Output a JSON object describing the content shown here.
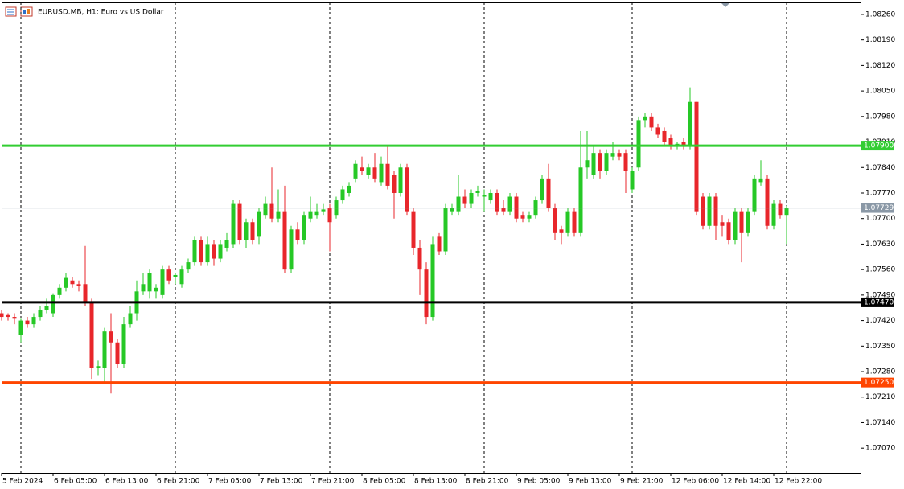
{
  "chart_data": {
    "type": "candlestick",
    "title": "EURUSD.MB, H1:  Euro vs US Dollar",
    "up_color": "#26c826",
    "down_color": "#e8262b",
    "ylim": [
      1.07002,
      1.08293
    ],
    "yticks": [
      {
        "value": 1.0826,
        "label": "1.08260"
      },
      {
        "value": 1.0819,
        "label": "1.08190"
      },
      {
        "value": 1.0812,
        "label": "1.08120"
      },
      {
        "value": 1.0805,
        "label": "1.08050"
      },
      {
        "value": 1.0798,
        "label": "1.07980"
      },
      {
        "value": 1.0791,
        "label": "1.07910"
      },
      {
        "value": 1.0784,
        "label": "1.07840"
      },
      {
        "value": 1.0777,
        "label": "1.07770"
      },
      {
        "value": 1.077,
        "label": "1.07700"
      },
      {
        "value": 1.0763,
        "label": "1.07630"
      },
      {
        "value": 1.0756,
        "label": "1.07560"
      },
      {
        "value": 1.0749,
        "label": "1.07490"
      },
      {
        "value": 1.0742,
        "label": "1.07420"
      },
      {
        "value": 1.0735,
        "label": "1.07350"
      },
      {
        "value": 1.0728,
        "label": "1.07280"
      },
      {
        "value": 1.0721,
        "label": "1.07210"
      },
      {
        "value": 1.0714,
        "label": "1.07140"
      },
      {
        "value": 1.0707,
        "label": "1.07070"
      }
    ],
    "hlines": [
      {
        "value": 1.079,
        "label": "1.07900",
        "color": "#32cd32"
      },
      {
        "value": 1.0747,
        "label": "1.07470",
        "color": "#000000"
      },
      {
        "value": 1.0725,
        "label": "1.07250",
        "color": "#ff4500"
      },
      {
        "value": 1.07729,
        "label": "1.07729",
        "color": "#8a98a6"
      }
    ],
    "categories": [
      "5 Feb 2024",
      null,
      null,
      null,
      null,
      null,
      null,
      null,
      "6 Feb 05:00",
      null,
      null,
      null,
      null,
      null,
      null,
      null,
      "6 Feb 13:00",
      null,
      null,
      null,
      null,
      null,
      null,
      null,
      "6 Feb 21:00",
      null,
      null,
      null,
      null,
      null,
      null,
      null,
      "7 Feb 05:00",
      null,
      null,
      null,
      null,
      null,
      null,
      null,
      "7 Feb 13:00",
      null,
      null,
      null,
      null,
      null,
      null,
      null,
      "7 Feb 21:00",
      null,
      null,
      null,
      null,
      null,
      null,
      null,
      "8 Feb 05:00",
      null,
      null,
      null,
      null,
      null,
      null,
      null,
      "8 Feb 13:00",
      null,
      null,
      null,
      null,
      null,
      null,
      null,
      "8 Feb 21:00",
      null,
      null,
      null,
      null,
      null,
      null,
      null,
      "9 Feb 05:00",
      null,
      null,
      null,
      null,
      null,
      null,
      null,
      "9 Feb 13:00",
      null,
      null,
      null,
      null,
      null,
      null,
      null,
      "9 Feb 21:00",
      null,
      null,
      null,
      null,
      null,
      null,
      null,
      "12 Feb 06:00",
      null,
      null,
      null,
      null,
      null,
      null,
      null,
      "12 Feb 14:00",
      null,
      null,
      null,
      null,
      null,
      null,
      null,
      "12 Feb 22:00",
      null,
      null
    ],
    "ohlc": [
      [
        1.0744,
        1.0745,
        1.0742,
        1.0743
      ],
      [
        1.07435,
        1.0744,
        1.0742,
        1.0743
      ],
      [
        1.0743,
        1.0744,
        1.0741,
        1.07425
      ],
      [
        1.0738,
        1.07425,
        1.0736,
        1.0742
      ],
      [
        1.0742,
        1.0743,
        1.074,
        1.0741
      ],
      [
        1.0741,
        1.0744,
        1.074,
        1.0743
      ],
      [
        1.0743,
        1.0746,
        1.0742,
        1.0745
      ],
      [
        1.0745,
        1.0748,
        1.0744,
        1.0746
      ],
      [
        1.0744,
        1.07495,
        1.0743,
        1.0749
      ],
      [
        1.0749,
        1.0752,
        1.0748,
        1.0751
      ],
      [
        1.0751,
        1.0755,
        1.075,
        1.07537
      ],
      [
        1.0753,
        1.0754,
        1.0751,
        1.0752
      ],
      [
        1.0752,
        1.0753,
        1.075,
        1.07515
      ],
      [
        1.0752,
        1.07625,
        1.0746,
        1.0747
      ],
      [
        1.0747,
        1.0748,
        1.0726,
        1.0729
      ],
      [
        1.0729,
        1.0731,
        1.0727,
        1.07295
      ],
      [
        1.0729,
        1.074,
        1.0725,
        1.0739
      ],
      [
        1.0739,
        1.0744,
        1.0722,
        1.0736
      ],
      [
        1.0736,
        1.0737,
        1.0729,
        1.073
      ],
      [
        1.073,
        1.0743,
        1.0729,
        1.0741
      ],
      [
        1.0741,
        1.0746,
        1.074,
        1.0744
      ],
      [
        1.0744,
        1.0753,
        1.0742,
        1.075
      ],
      [
        1.075,
        1.0755,
        1.0749,
        1.0752
      ],
      [
        1.075,
        1.0756,
        1.0748,
        1.0755
      ],
      [
        1.075,
        1.0752,
        1.0748,
        1.0751
      ],
      [
        1.0749,
        1.0757,
        1.0748,
        1.0756
      ],
      [
        1.0756,
        1.0757,
        1.0752,
        1.0753
      ],
      [
        1.0754,
        1.0755,
        1.0752,
        1.07545
      ],
      [
        1.0752,
        1.0757,
        1.0751,
        1.0756
      ],
      [
        1.0756,
        1.0759,
        1.0755,
        1.0758
      ],
      [
        1.0758,
        1.0765,
        1.0757,
        1.0764
      ],
      [
        1.0764,
        1.0765,
        1.0757,
        1.0758
      ],
      [
        1.0758,
        1.0765,
        1.0757,
        1.0763
      ],
      [
        1.0763,
        1.0764,
        1.0757,
        1.0759
      ],
      [
        1.0759,
        1.0764,
        1.0758,
        1.0763
      ],
      [
        1.0762,
        1.0766,
        1.0761,
        1.0764
      ],
      [
        1.0763,
        1.0775,
        1.0762,
        1.0774
      ],
      [
        1.0774,
        1.0775,
        1.0763,
        1.0764
      ],
      [
        1.0764,
        1.077,
        1.0762,
        1.0769
      ],
      [
        1.0769,
        1.077,
        1.0763,
        1.0764
      ],
      [
        1.0765,
        1.0773,
        1.0763,
        1.0772
      ],
      [
        1.0771,
        1.0776,
        1.077,
        1.0774
      ],
      [
        1.0774,
        1.0784,
        1.0769,
        1.077
      ],
      [
        1.077,
        1.0778,
        1.0769,
        1.0772
      ],
      [
        1.0772,
        1.0779,
        1.0755,
        1.0756
      ],
      [
        1.0756,
        1.0768,
        1.0755,
        1.0767
      ],
      [
        1.0767,
        1.0769,
        1.0763,
        1.0764
      ],
      [
        1.0764,
        1.0772,
        1.0763,
        1.0771
      ],
      [
        1.077,
        1.0776,
        1.0769,
        1.0772
      ],
      [
        1.0771,
        1.0774,
        1.077,
        1.0772
      ],
      [
        1.0772,
        1.0774,
        1.0771,
        1.07725
      ],
      [
        1.0773,
        1.0774,
        1.0761,
        1.0769
      ],
      [
        1.0771,
        1.0776,
        1.077,
        1.0775
      ],
      [
        1.0775,
        1.0779,
        1.0774,
        1.0778
      ],
      [
        1.0777,
        1.078,
        1.0776,
        1.0779
      ],
      [
        1.0781,
        1.0786,
        1.078,
        1.0785
      ],
      [
        1.0784,
        1.0787,
        1.0782,
        1.0783
      ],
      [
        1.0782,
        1.0785,
        1.0781,
        1.0784
      ],
      [
        1.0784,
        1.0788,
        1.078,
        1.0781
      ],
      [
        1.078,
        1.0787,
        1.0779,
        1.0785
      ],
      [
        1.0785,
        1.079,
        1.0778,
        1.0779
      ],
      [
        1.0782,
        1.0783,
        1.077,
        1.0777
      ],
      [
        1.0777,
        1.0785,
        1.0776,
        1.0784
      ],
      [
        1.0784,
        1.0785,
        1.0771,
        1.0772
      ],
      [
        1.0772,
        1.0773,
        1.076,
        1.0762
      ],
      [
        1.0762,
        1.0764,
        1.0749,
        1.0756
      ],
      [
        1.0756,
        1.0758,
        1.0741,
        1.0743
      ],
      [
        1.0743,
        1.0765,
        1.0742,
        1.0763
      ],
      [
        1.0765,
        1.0766,
        1.076,
        1.0761
      ],
      [
        1.0761,
        1.0774,
        1.076,
        1.0773
      ],
      [
        1.0772,
        1.0774,
        1.0771,
        1.0773
      ],
      [
        1.0772,
        1.0782,
        1.0771,
        1.0776
      ],
      [
        1.0776,
        1.0778,
        1.0773,
        1.0774
      ],
      [
        1.0774,
        1.0778,
        1.0773,
        1.0777
      ],
      [
        1.0777,
        1.0779,
        1.0776,
        1.07775
      ],
      [
        1.0776,
        1.0778,
        1.0772,
        1.07765
      ],
      [
        1.0775,
        1.0778,
        1.0774,
        1.0777
      ],
      [
        1.0777,
        1.0778,
        1.0771,
        1.0772
      ],
      [
        1.0773,
        1.0775,
        1.0771,
        1.0772
      ],
      [
        1.0772,
        1.0777,
        1.0771,
        1.0776
      ],
      [
        1.0776,
        1.0777,
        1.0769,
        1.077
      ],
      [
        1.0771,
        1.0772,
        1.0769,
        1.077
      ],
      [
        1.077,
        1.0772,
        1.0769,
        1.0771
      ],
      [
        1.0771,
        1.0776,
        1.077,
        1.0775
      ],
      [
        1.0775,
        1.0782,
        1.0774,
        1.0781
      ],
      [
        1.0781,
        1.0785,
        1.0772,
        1.0773
      ],
      [
        1.0773,
        1.0774,
        1.0764,
        1.0766
      ],
      [
        1.0767,
        1.0768,
        1.0763,
        1.0766
      ],
      [
        1.0766,
        1.0773,
        1.0765,
        1.0772
      ],
      [
        1.0772,
        1.0773,
        1.0765,
        1.0766
      ],
      [
        1.0766,
        1.0794,
        1.0765,
        1.0784
      ],
      [
        1.0784,
        1.0794,
        1.0781,
        1.0786
      ],
      [
        1.0782,
        1.079,
        1.0781,
        1.0788
      ],
      [
        1.0788,
        1.0789,
        1.0781,
        1.0783
      ],
      [
        1.0783,
        1.0789,
        1.0782,
        1.0788
      ],
      [
        1.0787,
        1.0791,
        1.0786,
        1.0788
      ],
      [
        1.0788,
        1.0789,
        1.0786,
        1.0787
      ],
      [
        1.0788,
        1.0789,
        1.0777,
        1.0783
      ],
      [
        1.0778,
        1.0784,
        1.0777,
        1.0783
      ],
      [
        1.0784,
        1.0798,
        1.0783,
        1.0797
      ],
      [
        1.0797,
        1.0799,
        1.0795,
        1.0798
      ],
      [
        1.0798,
        1.0799,
        1.0794,
        1.0795
      ],
      [
        1.0795,
        1.0796,
        1.0792,
        1.0793
      ],
      [
        1.0794,
        1.0795,
        1.079,
        1.0791
      ],
      [
        1.0792,
        1.0793,
        1.0789,
        1.079
      ],
      [
        1.079,
        1.0791,
        1.0789,
        1.07905
      ],
      [
        1.0791,
        1.0792,
        1.0789,
        1.079
      ],
      [
        1.079,
        1.0806,
        1.0789,
        1.0802
      ],
      [
        1.0802,
        1.0802,
        1.0771,
        1.0772
      ],
      [
        1.0776,
        1.0777,
        1.0767,
        1.0768
      ],
      [
        1.0768,
        1.0777,
        1.0767,
        1.0776
      ],
      [
        1.0776,
        1.0777,
        1.0764,
        1.0768
      ],
      [
        1.0769,
        1.0771,
        1.0765,
        1.0768
      ],
      [
        1.0769,
        1.077,
        1.0763,
        1.0764
      ],
      [
        1.0764,
        1.0773,
        1.0763,
        1.0772
      ],
      [
        1.0772,
        1.0773,
        1.0758,
        1.0766
      ],
      [
        1.0766,
        1.0773,
        1.0765,
        1.0772
      ],
      [
        1.0772,
        1.0782,
        1.0771,
        1.0781
      ],
      [
        1.078,
        1.0786,
        1.0779,
        1.0781
      ],
      [
        1.0781,
        1.0782,
        1.0767,
        1.0768
      ],
      [
        1.0768,
        1.0775,
        1.0767,
        1.0774
      ],
      [
        1.0774,
        1.0775,
        1.077,
        1.0771
      ],
      [
        1.0771,
        1.07735,
        1.0763,
        1.07729
      ]
    ]
  }
}
